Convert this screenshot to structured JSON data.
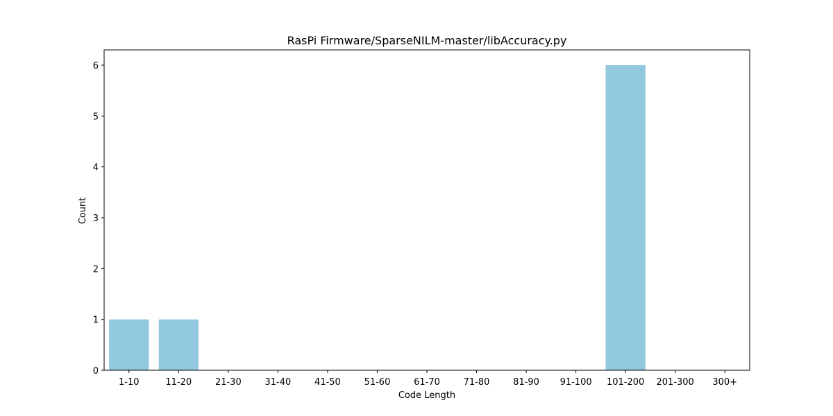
{
  "chart_data": {
    "type": "bar",
    "title": "RasPi Firmware/SparseNILM-master/libAccuracy.py",
    "xlabel": "Code Length",
    "ylabel": "Count",
    "categories": [
      "1-10",
      "11-20",
      "21-30",
      "31-40",
      "41-50",
      "51-60",
      "61-70",
      "71-80",
      "81-90",
      "91-100",
      "101-200",
      "201-300",
      "300+"
    ],
    "values": [
      1,
      1,
      0,
      0,
      0,
      0,
      0,
      0,
      0,
      0,
      6,
      0,
      0
    ],
    "ylim": [
      0,
      6.3
    ],
    "yticks": [
      0,
      1,
      2,
      3,
      4,
      5,
      6
    ],
    "grid": false,
    "bar_color": "#92c9df"
  }
}
